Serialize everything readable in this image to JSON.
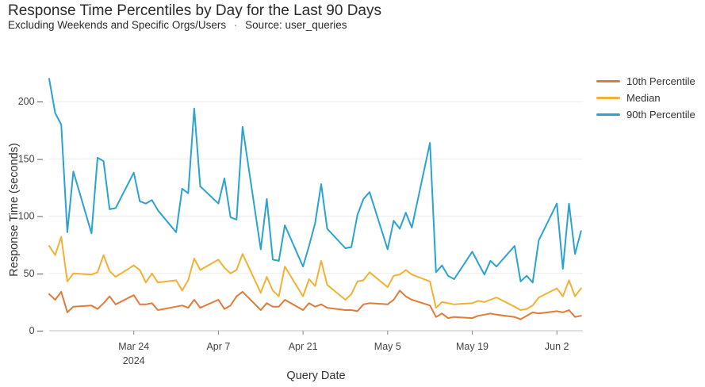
{
  "chart_data": {
    "type": "line",
    "title": "Response Time Percentiles by Day for the Last 90 Days",
    "subtitle": "Excluding Weekends and Specific Orgs/Users",
    "subtitle_separator": "·",
    "source": "Source: user_queries",
    "xlabel": "Query Date",
    "ylabel": "Response Time (seconds)",
    "ylim": [
      0,
      225
    ],
    "xlim": [
      0,
      85
    ],
    "y_ticks": [
      0,
      50,
      100,
      150,
      200
    ],
    "x_ticks": [
      {
        "x": 14,
        "label": "Mar 24",
        "sublabel": "2024"
      },
      {
        "x": 28,
        "label": "Apr 7",
        "sublabel": ""
      },
      {
        "x": 42,
        "label": "Apr 21",
        "sublabel": ""
      },
      {
        "x": 56,
        "label": "May 5",
        "sublabel": ""
      },
      {
        "x": 70,
        "label": "May 19",
        "sublabel": ""
      },
      {
        "x": 84,
        "label": "Jun 2",
        "sublabel": ""
      }
    ],
    "legend_position": "top-right",
    "grid": true,
    "series": [
      {
        "name": "10th Percentile",
        "color": "#e07b39",
        "points": [
          [
            0,
            32
          ],
          [
            1,
            27
          ],
          [
            2,
            34
          ],
          [
            3,
            16
          ],
          [
            4,
            21
          ],
          [
            7,
            22
          ],
          [
            8,
            19
          ],
          [
            9,
            24
          ],
          [
            10,
            30
          ],
          [
            11,
            23
          ],
          [
            14,
            31
          ],
          [
            15,
            23
          ],
          [
            16,
            23
          ],
          [
            17,
            24
          ],
          [
            18,
            18
          ],
          [
            21,
            21
          ],
          [
            22,
            22
          ],
          [
            23,
            20
          ],
          [
            24,
            27
          ],
          [
            25,
            20
          ],
          [
            28,
            27
          ],
          [
            29,
            19
          ],
          [
            30,
            22
          ],
          [
            31,
            30
          ],
          [
            32,
            34
          ],
          [
            35,
            18
          ],
          [
            36,
            24
          ],
          [
            37,
            21
          ],
          [
            38,
            21
          ],
          [
            39,
            27
          ],
          [
            42,
            18
          ],
          [
            43,
            24
          ],
          [
            44,
            21
          ],
          [
            45,
            23
          ],
          [
            46,
            20
          ],
          [
            49,
            18
          ],
          [
            50,
            18
          ],
          [
            51,
            17
          ],
          [
            52,
            23
          ],
          [
            53,
            24
          ],
          [
            56,
            23
          ],
          [
            57,
            27
          ],
          [
            58,
            35
          ],
          [
            59,
            30
          ],
          [
            60,
            27
          ],
          [
            63,
            22
          ],
          [
            64,
            12
          ],
          [
            65,
            15
          ],
          [
            66,
            11
          ],
          [
            67,
            12
          ],
          [
            70,
            11
          ],
          [
            71,
            13
          ],
          [
            72,
            14
          ],
          [
            73,
            15
          ],
          [
            74,
            14
          ],
          [
            77,
            12
          ],
          [
            78,
            10
          ],
          [
            79,
            13
          ],
          [
            80,
            16
          ],
          [
            81,
            15
          ],
          [
            84,
            17
          ],
          [
            85,
            16
          ],
          [
            86,
            18
          ],
          [
            87,
            12
          ],
          [
            88,
            13
          ]
        ]
      },
      {
        "name": "Median",
        "color": "#f2b134",
        "points": [
          [
            0,
            74
          ],
          [
            1,
            66
          ],
          [
            2,
            82
          ],
          [
            3,
            43
          ],
          [
            4,
            50
          ],
          [
            7,
            49
          ],
          [
            8,
            51
          ],
          [
            9,
            66
          ],
          [
            10,
            52
          ],
          [
            11,
            47
          ],
          [
            14,
            57
          ],
          [
            15,
            53
          ],
          [
            16,
            42
          ],
          [
            17,
            50
          ],
          [
            18,
            42
          ],
          [
            21,
            44
          ],
          [
            22,
            35
          ],
          [
            23,
            44
          ],
          [
            24,
            63
          ],
          [
            25,
            53
          ],
          [
            28,
            62
          ],
          [
            29,
            55
          ],
          [
            30,
            50
          ],
          [
            31,
            53
          ],
          [
            32,
            67
          ],
          [
            35,
            33
          ],
          [
            36,
            47
          ],
          [
            37,
            35
          ],
          [
            38,
            30
          ],
          [
            39,
            56
          ],
          [
            42,
            30
          ],
          [
            43,
            45
          ],
          [
            44,
            39
          ],
          [
            45,
            61
          ],
          [
            46,
            40
          ],
          [
            49,
            27
          ],
          [
            50,
            32
          ],
          [
            51,
            43
          ],
          [
            52,
            44
          ],
          [
            53,
            51
          ],
          [
            56,
            38
          ],
          [
            57,
            48
          ],
          [
            58,
            49
          ],
          [
            59,
            53
          ],
          [
            60,
            49
          ],
          [
            63,
            43
          ],
          [
            64,
            20
          ],
          [
            65,
            25
          ],
          [
            66,
            24
          ],
          [
            67,
            23
          ],
          [
            70,
            24
          ],
          [
            71,
            26
          ],
          [
            72,
            25
          ],
          [
            73,
            27
          ],
          [
            74,
            29
          ],
          [
            77,
            21
          ],
          [
            78,
            18
          ],
          [
            79,
            19
          ],
          [
            80,
            22
          ],
          [
            81,
            29
          ],
          [
            84,
            37
          ],
          [
            85,
            30
          ],
          [
            86,
            44
          ],
          [
            87,
            30
          ],
          [
            88,
            37
          ]
        ]
      },
      {
        "name": "90th Percentile",
        "color": "#2ba3d1",
        "points": [
          [
            0,
            220
          ],
          [
            1,
            190
          ],
          [
            2,
            180
          ],
          [
            3,
            86
          ],
          [
            4,
            139
          ],
          [
            7,
            85
          ],
          [
            8,
            151
          ],
          [
            9,
            148
          ],
          [
            10,
            106
          ],
          [
            11,
            107
          ],
          [
            14,
            138
          ],
          [
            15,
            113
          ],
          [
            16,
            111
          ],
          [
            17,
            114
          ],
          [
            18,
            105
          ],
          [
            21,
            86
          ],
          [
            22,
            124
          ],
          [
            23,
            120
          ],
          [
            24,
            194
          ],
          [
            25,
            126
          ],
          [
            28,
            111
          ],
          [
            29,
            133
          ],
          [
            30,
            99
          ],
          [
            31,
            97
          ],
          [
            32,
            178
          ],
          [
            35,
            71
          ],
          [
            36,
            115
          ],
          [
            37,
            62
          ],
          [
            38,
            61
          ],
          [
            39,
            92
          ],
          [
            42,
            56
          ],
          [
            43,
            74
          ],
          [
            44,
            94
          ],
          [
            45,
            128
          ],
          [
            46,
            89
          ],
          [
            49,
            72
          ],
          [
            50,
            73
          ],
          [
            51,
            101
          ],
          [
            52,
            115
          ],
          [
            53,
            121
          ],
          [
            56,
            71
          ],
          [
            57,
            96
          ],
          [
            58,
            89
          ],
          [
            59,
            103
          ],
          [
            60,
            90
          ],
          [
            63,
            164
          ],
          [
            64,
            51
          ],
          [
            65,
            57
          ],
          [
            66,
            48
          ],
          [
            67,
            45
          ],
          [
            70,
            69
          ],
          [
            71,
            59
          ],
          [
            72,
            49
          ],
          [
            73,
            61
          ],
          [
            74,
            56
          ],
          [
            77,
            74
          ],
          [
            78,
            43
          ],
          [
            79,
            48
          ],
          [
            80,
            42
          ],
          [
            81,
            79
          ],
          [
            84,
            111
          ],
          [
            85,
            54
          ],
          [
            86,
            111
          ],
          [
            87,
            67
          ],
          [
            88,
            87
          ]
        ]
      }
    ]
  }
}
